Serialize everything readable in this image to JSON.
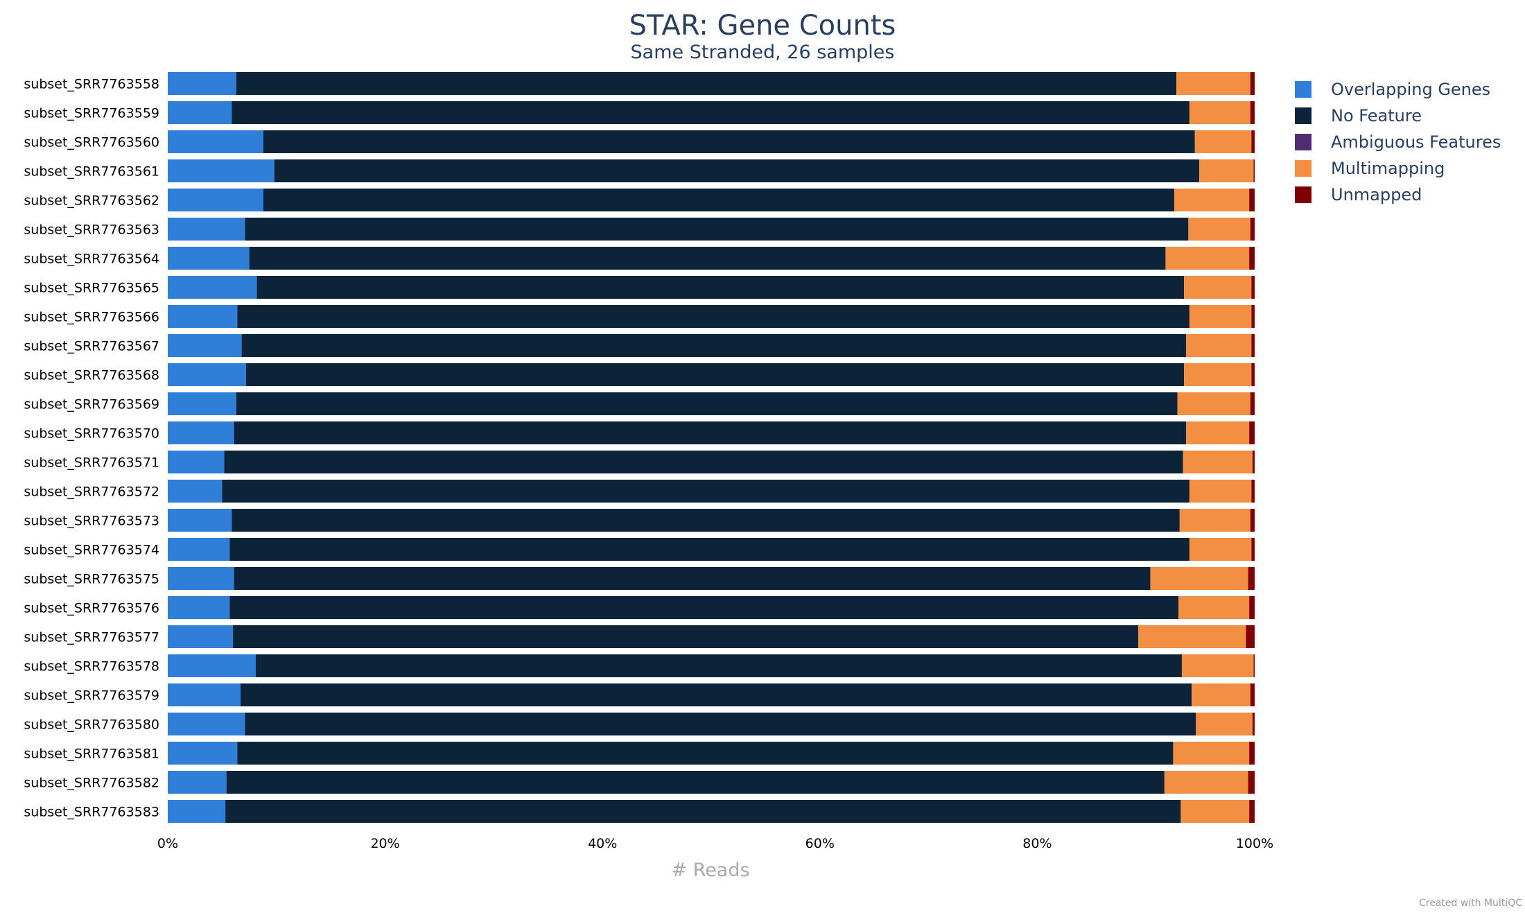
{
  "chart_data": {
    "type": "bar",
    "orientation": "horizontal",
    "stacked": true,
    "normalized_percent": true,
    "title": "STAR: Gene Counts",
    "subtitle": "Same Stranded, 26 samples",
    "xlabel": "# Reads",
    "xlim": [
      0,
      100
    ],
    "xticks": [
      "0%",
      "20%",
      "40%",
      "60%",
      "80%",
      "100%"
    ],
    "legend_position": "right-top",
    "credit": "Created with MultiQC",
    "categories": [
      "subset_SRR7763558",
      "subset_SRR7763559",
      "subset_SRR7763560",
      "subset_SRR7763561",
      "subset_SRR7763562",
      "subset_SRR7763563",
      "subset_SRR7763564",
      "subset_SRR7763565",
      "subset_SRR7763566",
      "subset_SRR7763567",
      "subset_SRR7763568",
      "subset_SRR7763569",
      "subset_SRR7763570",
      "subset_SRR7763571",
      "subset_SRR7763572",
      "subset_SRR7763573",
      "subset_SRR7763574",
      "subset_SRR7763575",
      "subset_SRR7763576",
      "subset_SRR7763577",
      "subset_SRR7763578",
      "subset_SRR7763579",
      "subset_SRR7763580",
      "subset_SRR7763581",
      "subset_SRR7763582",
      "subset_SRR7763583"
    ],
    "series": [
      {
        "name": "Overlapping Genes",
        "color": "#2f7ed8",
        "values": [
          6.3,
          5.9,
          8.8,
          9.8,
          8.8,
          7.1,
          7.5,
          8.2,
          6.4,
          6.8,
          7.2,
          6.3,
          6.1,
          5.2,
          5.0,
          5.9,
          5.7,
          6.1,
          5.7,
          6.0,
          8.1,
          6.7,
          7.1,
          6.4,
          5.4,
          5.3
        ]
      },
      {
        "name": "No Feature",
        "color": "#0d233a",
        "values": [
          86.5,
          88.1,
          85.7,
          85.1,
          83.8,
          86.8,
          84.3,
          85.3,
          87.6,
          86.9,
          86.3,
          86.6,
          87.6,
          88.2,
          89.0,
          87.2,
          88.3,
          84.3,
          87.3,
          83.3,
          85.2,
          87.5,
          87.5,
          86.1,
          86.3,
          87.9
        ]
      },
      {
        "name": "Ambiguous Features",
        "color": "#532b73",
        "values": [
          0,
          0,
          0,
          0,
          0,
          0,
          0,
          0,
          0,
          0,
          0,
          0,
          0,
          0,
          0,
          0,
          0,
          0,
          0,
          0,
          0,
          0,
          0,
          0,
          0,
          0
        ]
      },
      {
        "name": "Multimapping",
        "color": "#f28f43",
        "values": [
          6.8,
          5.6,
          5.2,
          5.0,
          6.9,
          5.7,
          7.7,
          6.2,
          5.7,
          6.0,
          6.2,
          6.7,
          5.8,
          6.4,
          5.7,
          6.5,
          5.7,
          9.0,
          6.5,
          9.9,
          6.6,
          5.4,
          5.2,
          7.0,
          7.7,
          6.3
        ]
      },
      {
        "name": "Unmapped",
        "color": "#7f0000",
        "values": [
          0.4,
          0.4,
          0.3,
          0.1,
          0.5,
          0.4,
          0.5,
          0.3,
          0.3,
          0.3,
          0.3,
          0.4,
          0.5,
          0.2,
          0.3,
          0.4,
          0.3,
          0.6,
          0.5,
          0.8,
          0.1,
          0.4,
          0.2,
          0.5,
          0.6,
          0.5
        ]
      }
    ]
  }
}
